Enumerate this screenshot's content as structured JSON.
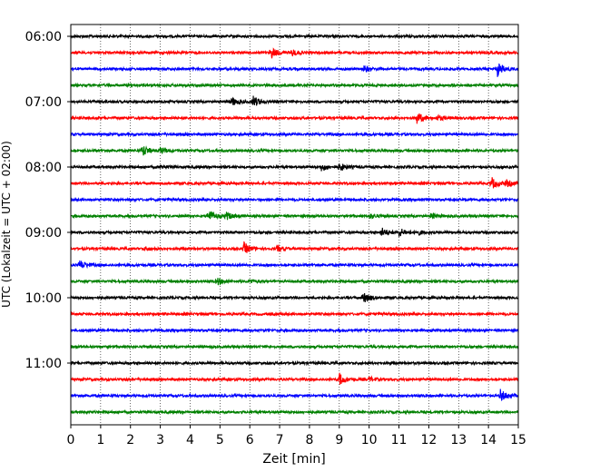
{
  "chart_data": {
    "type": "line",
    "title": "",
    "xlabel": "Zeit  [min]",
    "ylabel": "UTC (Lokalzeit = UTC + 02:00)",
    "xlim": [
      0,
      15
    ],
    "x_ticks": [
      "0",
      "1",
      "2",
      "3",
      "4",
      "5",
      "6",
      "7",
      "8",
      "9",
      "10",
      "11",
      "12",
      "13",
      "14",
      "15"
    ],
    "y_ticks": [
      "06:00",
      "07:00",
      "08:00",
      "09:00",
      "10:00",
      "11:00"
    ],
    "grid": "vertical dotted at each minute",
    "colors_cycle": [
      "#000000",
      "#ff0000",
      "#0000ff",
      "#008000"
    ],
    "series": [
      {
        "start": "06:00",
        "color": "#000000",
        "events": []
      },
      {
        "start": "06:15",
        "color": "#ff0000",
        "events": [
          [
            6.7,
            1.0
          ],
          [
            7.4,
            0.6
          ]
        ]
      },
      {
        "start": "06:30",
        "color": "#0000ff",
        "events": [
          [
            9.8,
            0.6
          ],
          [
            14.3,
            1.2
          ]
        ]
      },
      {
        "start": "06:45",
        "color": "#008000",
        "events": []
      },
      {
        "start": "07:00",
        "color": "#000000",
        "events": [
          [
            5.4,
            0.7
          ],
          [
            6.1,
            1.0
          ]
        ]
      },
      {
        "start": "07:15",
        "color": "#ff0000",
        "events": [
          [
            11.6,
            1.0
          ],
          [
            12.3,
            0.4
          ]
        ]
      },
      {
        "start": "07:30",
        "color": "#0000ff",
        "events": []
      },
      {
        "start": "07:45",
        "color": "#008000",
        "events": [
          [
            2.4,
            1.0
          ],
          [
            3.0,
            0.5
          ]
        ]
      },
      {
        "start": "08:00",
        "color": "#000000",
        "events": [
          [
            8.4,
            0.6
          ],
          [
            9.0,
            0.7
          ],
          [
            3.0,
            0.3
          ]
        ]
      },
      {
        "start": "08:15",
        "color": "#ff0000",
        "events": [
          [
            14.1,
            1.0
          ],
          [
            14.6,
            0.5
          ]
        ]
      },
      {
        "start": "08:30",
        "color": "#0000ff",
        "events": []
      },
      {
        "start": "08:45",
        "color": "#008000",
        "events": [
          [
            4.6,
            1.2
          ],
          [
            5.2,
            0.6
          ],
          [
            12.1,
            0.5
          ],
          [
            10.0,
            0.4
          ]
        ]
      },
      {
        "start": "09:00",
        "color": "#000000",
        "events": [
          [
            10.4,
            0.8
          ],
          [
            11.0,
            0.7
          ],
          [
            11.6,
            0.4
          ]
        ]
      },
      {
        "start": "09:15",
        "color": "#ff0000",
        "events": [
          [
            5.8,
            1.0
          ],
          [
            6.9,
            0.5
          ],
          [
            2.5,
            0.3
          ]
        ]
      },
      {
        "start": "09:30",
        "color": "#0000ff",
        "events": [
          [
            0.3,
            0.8
          ]
        ]
      },
      {
        "start": "09:45",
        "color": "#008000",
        "events": [
          [
            4.9,
            0.6
          ],
          [
            6.0,
            0.3
          ]
        ]
      },
      {
        "start": "10:00",
        "color": "#000000",
        "events": [
          [
            9.8,
            1.0
          ]
        ]
      },
      {
        "start": "10:15",
        "color": "#ff0000",
        "events": []
      },
      {
        "start": "10:30",
        "color": "#0000ff",
        "events": []
      },
      {
        "start": "10:45",
        "color": "#008000",
        "events": []
      },
      {
        "start": "11:00",
        "color": "#000000",
        "events": []
      },
      {
        "start": "11:15",
        "color": "#ff0000",
        "events": [
          [
            9.0,
            1.0
          ],
          [
            10.0,
            0.4
          ]
        ]
      },
      {
        "start": "11:30",
        "color": "#0000ff",
        "events": [
          [
            14.4,
            1.0
          ]
        ]
      },
      {
        "start": "11:45",
        "color": "#008000",
        "events": []
      }
    ]
  }
}
